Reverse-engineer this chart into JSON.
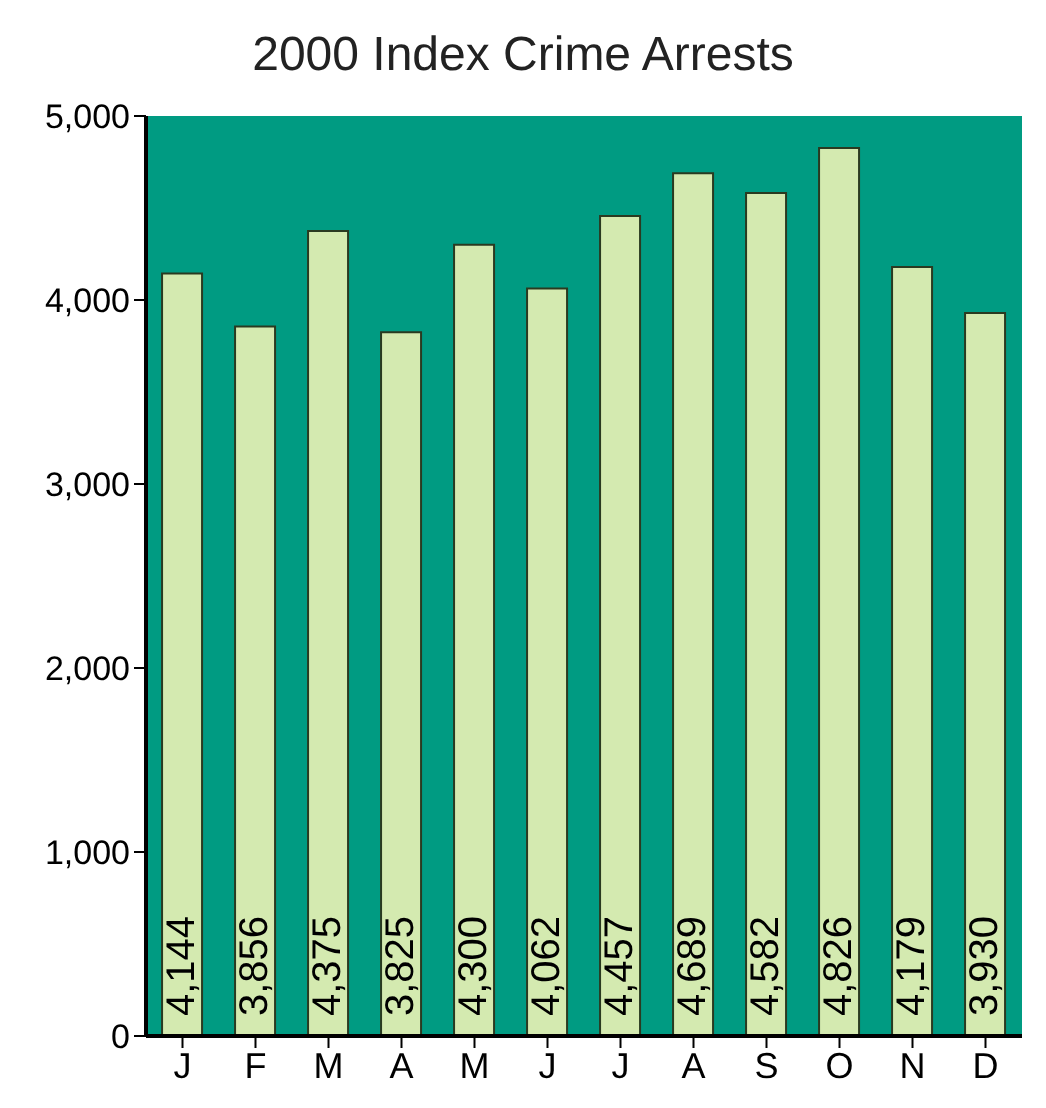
{
  "chart_data": {
    "type": "bar",
    "title": "2000 Index Crime Arrests",
    "categories": [
      "J",
      "F",
      "M",
      "A",
      "M",
      "J",
      "J",
      "A",
      "S",
      "O",
      "N",
      "D"
    ],
    "values": [
      4144,
      3856,
      4375,
      3825,
      4300,
      4062,
      4457,
      4689,
      4582,
      4826,
      4179,
      3930
    ],
    "color": "#d4eab0",
    "ylim": [
      0,
      5000
    ],
    "yticks": [
      {
        "value": 0,
        "label": "0"
      },
      {
        "value": 1000,
        "label": "1,000"
      },
      {
        "value": 2000,
        "label": "2,000"
      },
      {
        "value": 3000,
        "label": "3,000"
      },
      {
        "value": 4000,
        "label": "4,000"
      },
      {
        "value": 5000,
        "label": "5,000"
      }
    ],
    "value_labels": [
      "4,144",
      "3,856",
      "4,375",
      "3,825",
      "4,300",
      "4,062",
      "4,457",
      "4,689",
      "4,582",
      "4,826",
      "4,179",
      "3,930"
    ],
    "grid": false
  }
}
